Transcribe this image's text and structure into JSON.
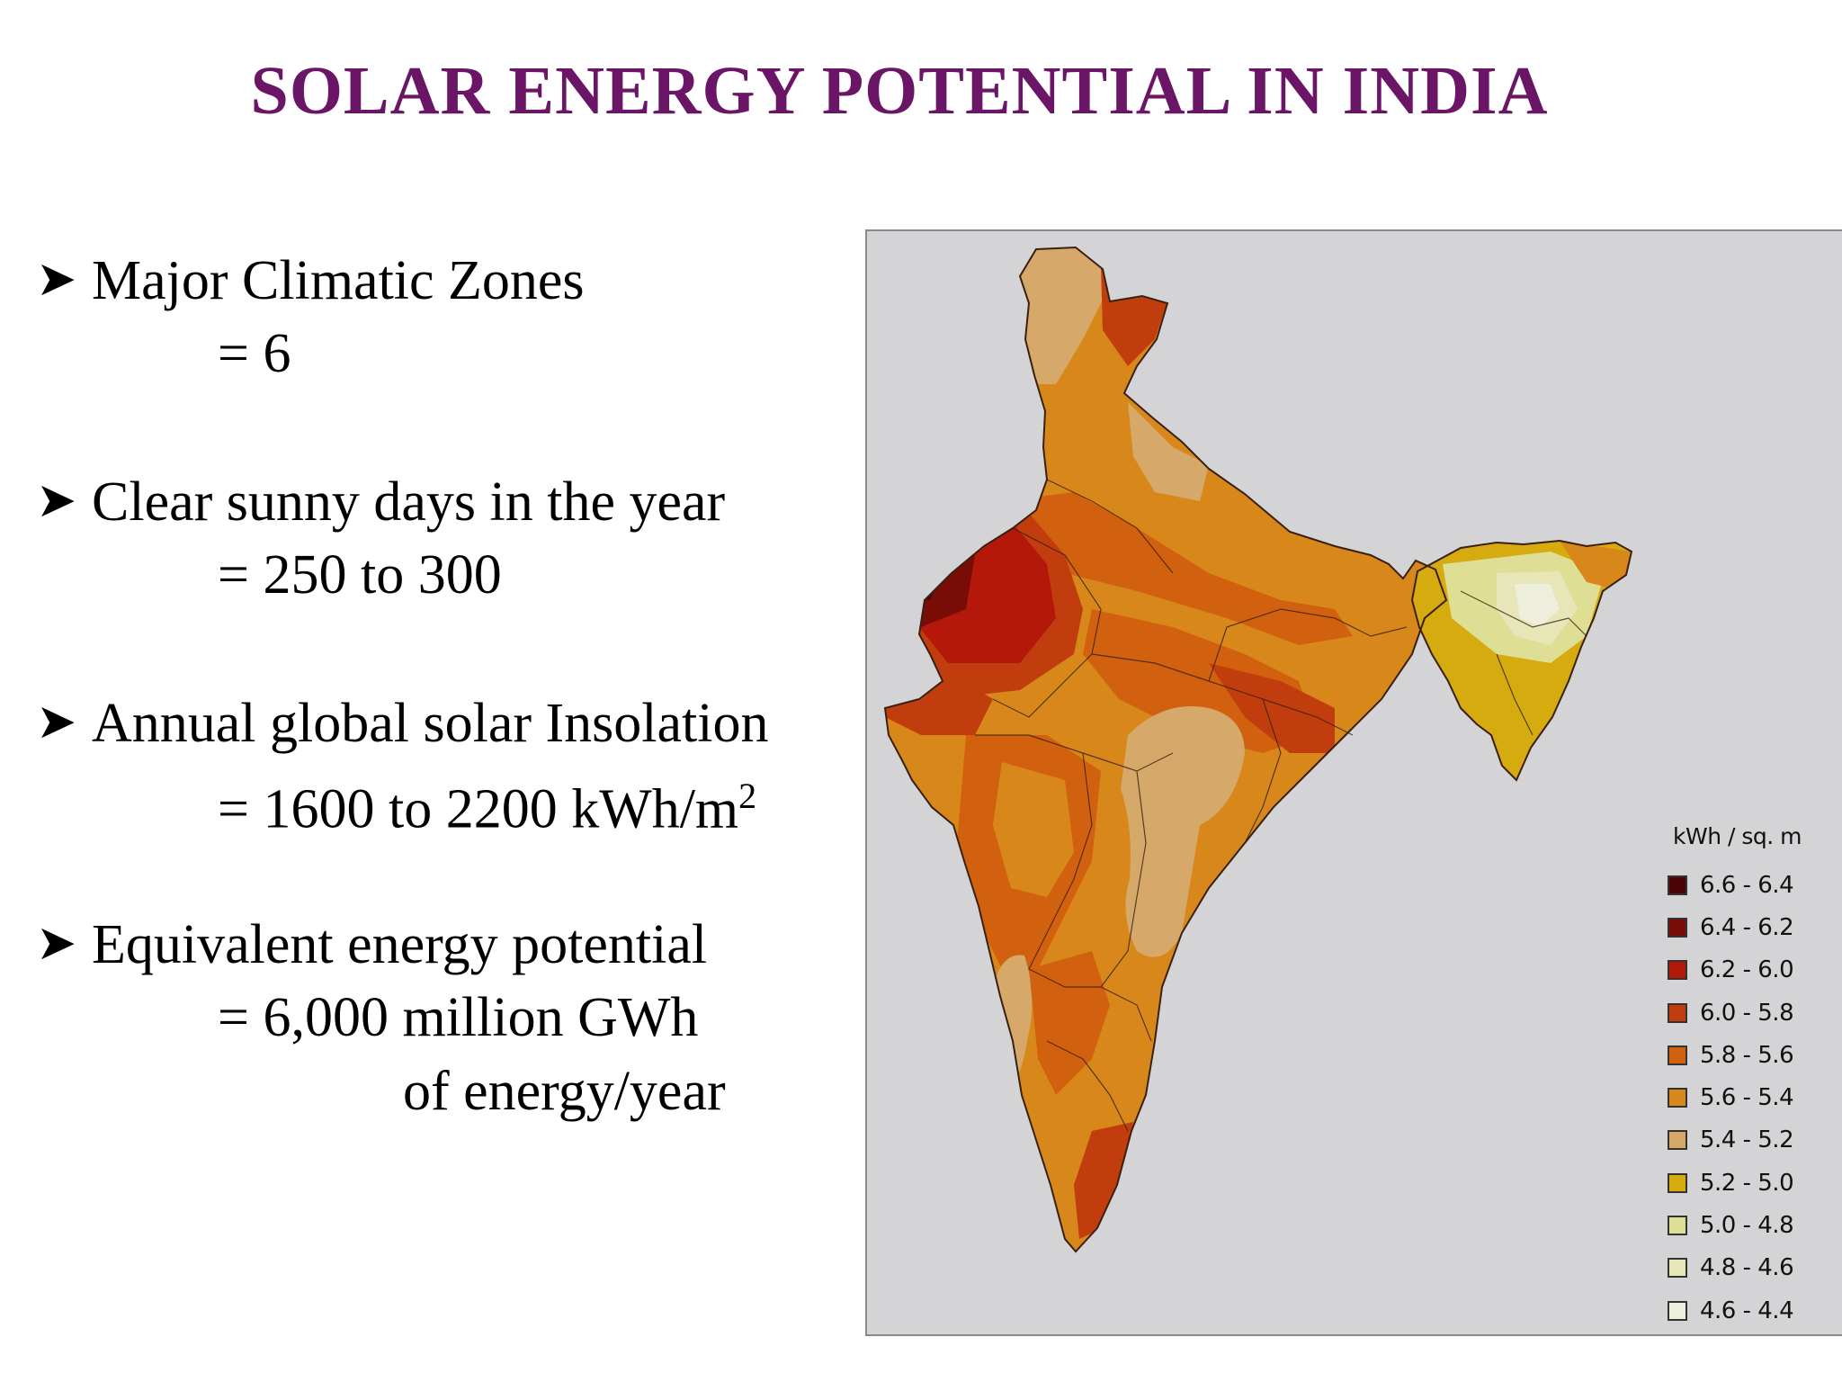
{
  "title": "SOLAR ENERGY POTENTIAL IN INDIA",
  "bullets": [
    {
      "label": "Major Climatic Zones",
      "value": "= 6"
    },
    {
      "label": "Clear sunny days in the year",
      "value": "= 250 to 300"
    },
    {
      "label": "Annual global solar Insolation",
      "value": "= 1600 to 2200 kWh/m",
      "value_sup": "2"
    },
    {
      "label": "Equivalent energy potential",
      "value": "= 6,000 million GWh",
      "value_cont": "of energy/year"
    }
  ],
  "bullet_icon": "arrow-bullet-icon",
  "legend": {
    "title": "kWh / sq. m",
    "items": [
      {
        "label": "6.6 - 6.4",
        "color": "#4a0404"
      },
      {
        "label": "6.4 - 6.2",
        "color": "#7a0c08"
      },
      {
        "label": "6.2 - 6.0",
        "color": "#b3180b"
      },
      {
        "label": "6.0 - 5.8",
        "color": "#c23d0d"
      },
      {
        "label": "5.8 - 5.6",
        "color": "#d1610f"
      },
      {
        "label": "5.6 - 5.4",
        "color": "#d8881b"
      },
      {
        "label": "5.4 - 5.2",
        "color": "#d6a96a"
      },
      {
        "label": "5.2 - 5.0",
        "color": "#d6ab10"
      },
      {
        "label": "5.0 - 4.8",
        "color": "#dede94"
      },
      {
        "label": "4.8 - 4.6",
        "color": "#e6e6b8"
      },
      {
        "label": "4.6 - 4.4",
        "color": "#eeeedd"
      }
    ]
  }
}
